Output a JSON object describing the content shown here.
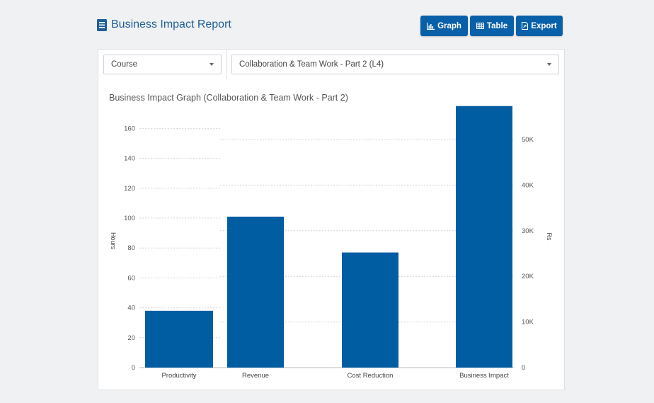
{
  "header": {
    "title": "Business Impact Report"
  },
  "toolbar": {
    "graph_label": "Graph",
    "table_label": "Table",
    "export_label": "Export"
  },
  "filters": {
    "course_value": "Course",
    "module_value": "Collaboration & Team Work - Part 2 (L4)"
  },
  "colors": {
    "accent": "#0860a8",
    "bar": "#005da2",
    "title": "#1e5e99"
  },
  "chart_data": {
    "type": "bar",
    "title": "Business Impact Graph (Collaboration & Team Work - Part 2)",
    "categories": [
      "Productivity",
      "Revenue",
      "Cost Reduction",
      "Business Impact"
    ],
    "series": [
      {
        "values": [
          38,
          101,
          77,
          175
        ]
      }
    ],
    "y_left": {
      "label": "Hours",
      "ticks": [
        0,
        20,
        40,
        60,
        80,
        100,
        120,
        140,
        160
      ],
      "ylim": [
        0,
        175
      ]
    },
    "y_right": {
      "label": "Rs",
      "ticks": [
        "0",
        "10K",
        "20K",
        "30K",
        "40K",
        "50K"
      ],
      "tick_values": [
        0,
        10000,
        20000,
        30000,
        40000,
        50000
      ],
      "ylim": [
        0,
        57500
      ]
    },
    "grid": true
  }
}
